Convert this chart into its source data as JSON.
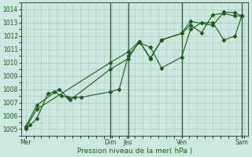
{
  "xlabel": "Pression niveau de la mer( hPa )",
  "bg_color": "#cce8e0",
  "grid_color": "#b0c8c0",
  "line_color": "#1a5c1a",
  "vline_color": "#3a6040",
  "ylim": [
    1004.5,
    1014.5
  ],
  "yticks": [
    1005,
    1006,
    1007,
    1008,
    1009,
    1010,
    1011,
    1012,
    1013,
    1014
  ],
  "day_labels": [
    "Mer",
    "Dim",
    "Jeu",
    "Ven",
    "Sam"
  ],
  "day_positions": [
    0.0,
    38.0,
    46.0,
    70.0,
    97.0
  ],
  "xlim": [
    -2,
    100
  ],
  "vlines_strong": [
    38.0,
    46.0,
    70.0,
    97.0
  ],
  "series1": {
    "x": [
      0,
      2,
      5,
      10,
      13,
      16,
      19,
      22,
      25,
      38,
      42,
      46,
      51,
      56,
      61,
      70,
      74,
      79,
      84,
      89,
      94,
      97
    ],
    "y": [
      1005.0,
      1005.3,
      1005.8,
      1007.7,
      1007.8,
      1007.5,
      1007.4,
      1007.4,
      1007.4,
      1007.8,
      1008.0,
      1010.5,
      1011.5,
      1011.15,
      1009.6,
      1010.4,
      1012.5,
      1013.0,
      1013.0,
      1011.7,
      1012.0,
      1013.5
    ],
    "marker": "D",
    "markersize": 2.5,
    "linewidth": 0.8
  },
  "series2": {
    "x": [
      0,
      5,
      38,
      46,
      51,
      56,
      61,
      70,
      74,
      79,
      84,
      89,
      94,
      97
    ],
    "y": [
      1005.1,
      1006.5,
      1010.0,
      1010.8,
      1011.6,
      1010.3,
      1011.7,
      1012.2,
      1012.8,
      1012.25,
      1013.6,
      1013.7,
      1013.5,
      1013.5
    ],
    "marker": "D",
    "markersize": 2.5,
    "linewidth": 0.8
  },
  "series3": {
    "x": [
      0,
      5,
      15,
      20,
      38,
      46,
      51,
      56,
      61,
      70,
      74,
      84,
      89,
      94,
      97
    ],
    "y": [
      1005.2,
      1006.8,
      1008.0,
      1007.2,
      1009.5,
      1010.3,
      1011.6,
      1010.35,
      1011.7,
      1012.2,
      1013.1,
      1012.8,
      1013.8,
      1013.75,
      1013.5
    ],
    "marker": "D",
    "markersize": 2.5,
    "linewidth": 0.8
  }
}
